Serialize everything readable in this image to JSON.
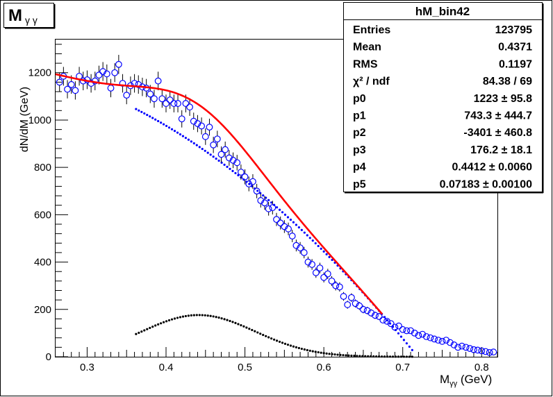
{
  "title_box": {
    "main": "M",
    "sub": "γ γ"
  },
  "stats": {
    "name": "hM_bin42",
    "rows": [
      {
        "label": "Entries",
        "value": "123795"
      },
      {
        "label": "Mean",
        "value": "0.4371"
      },
      {
        "label": "RMS",
        "value": "0.1197"
      },
      {
        "label": "χ² / ndf",
        "value": "84.38 / 69"
      },
      {
        "label": "p0",
        "value": "1223 ± 95.8"
      },
      {
        "label": "p1",
        "value": "743.3 ± 444.7"
      },
      {
        "label": "p2",
        "value": "-3401 ± 460.8"
      },
      {
        "label": "p3",
        "value": "176.2 ± 18.1"
      },
      {
        "label": "p4",
        "value": "0.4412 ± 0.0060"
      },
      {
        "label": "p5",
        "value": "0.07183 ± 0.00100"
      }
    ]
  },
  "chart_data": {
    "type": "scatter",
    "xlabel": "Mγγ (GeV)",
    "ylabel": "dN/dM (GeV)",
    "xlim": [
      0.26,
      0.82
    ],
    "ylim": [
      0,
      1340
    ],
    "xticks": [
      "0.3",
      "0.4",
      "0.5",
      "0.6",
      "0.7",
      "0.8"
    ],
    "yticks": [
      "0",
      "200",
      "400",
      "600",
      "800",
      "1000",
      "1200"
    ],
    "fit_params": {
      "p0": 1223,
      "p1": 743.3,
      "p2": -3401,
      "p3": 176.2,
      "p4": 0.4412,
      "p5": 0.07183
    },
    "fit_range": [
      0.26,
      0.675
    ],
    "component_range": [
      0.362,
      0.715
    ],
    "series": [
      {
        "name": "hM_bin42",
        "kind": "points",
        "color": "#0000ff",
        "x": [
          0.265,
          0.27,
          0.275,
          0.28,
          0.285,
          0.29,
          0.295,
          0.3,
          0.305,
          0.31,
          0.315,
          0.32,
          0.325,
          0.33,
          0.335,
          0.34,
          0.345,
          0.35,
          0.355,
          0.36,
          0.365,
          0.37,
          0.375,
          0.38,
          0.385,
          0.39,
          0.395,
          0.4,
          0.405,
          0.41,
          0.415,
          0.42,
          0.425,
          0.43,
          0.435,
          0.44,
          0.445,
          0.45,
          0.455,
          0.46,
          0.465,
          0.47,
          0.475,
          0.48,
          0.485,
          0.49,
          0.495,
          0.5,
          0.505,
          0.51,
          0.515,
          0.52,
          0.525,
          0.53,
          0.535,
          0.54,
          0.545,
          0.55,
          0.555,
          0.56,
          0.565,
          0.57,
          0.575,
          0.58,
          0.585,
          0.59,
          0.595,
          0.6,
          0.605,
          0.61,
          0.615,
          0.62,
          0.625,
          0.63,
          0.635,
          0.64,
          0.645,
          0.65,
          0.655,
          0.66,
          0.665,
          0.67,
          0.675,
          0.68,
          0.685,
          0.69,
          0.695,
          0.7,
          0.705,
          0.71,
          0.715,
          0.72,
          0.725,
          0.73,
          0.735,
          0.74,
          0.745,
          0.75,
          0.755,
          0.76,
          0.765,
          0.77,
          0.775,
          0.78,
          0.785,
          0.79,
          0.795,
          0.8,
          0.805,
          0.81,
          0.815
        ],
        "y": [
          1160,
          1185,
          1130,
          1150,
          1125,
          1185,
          1165,
          1170,
          1155,
          1165,
          1190,
          1205,
          1195,
          1135,
          1200,
          1235,
          1155,
          1105,
          1145,
          1155,
          1150,
          1140,
          1135,
          1110,
          1090,
          1165,
          1090,
          1070,
          1085,
          1070,
          1070,
          1005,
          1070,
          1055,
          995,
          985,
          975,
          930,
          970,
          895,
          920,
          855,
          875,
          840,
          830,
          820,
          780,
          760,
          730,
          740,
          700,
          660,
          650,
          625,
          630,
          580,
          565,
          550,
          540,
          510,
          470,
          460,
          440,
          400,
          390,
          355,
          375,
          335,
          350,
          320,
          300,
          295,
          255,
          220,
          250,
          225,
          215,
          200,
          195,
          185,
          175,
          170,
          155,
          150,
          140,
          125,
          130,
          115,
          110,
          110,
          100,
          90,
          95,
          85,
          80,
          75,
          70,
          65,
          70,
          60,
          50,
          40,
          45,
          40,
          35,
          30,
          28,
          25,
          22,
          18,
          20
        ],
        "err_per_sqrt": 1.0
      },
      {
        "name": "background",
        "kind": "dotted-line",
        "color": "#0000ff"
      },
      {
        "name": "peak",
        "kind": "dotted-line",
        "color": "#000000"
      },
      {
        "name": "fit",
        "kind": "line",
        "color": "#ff0000"
      }
    ]
  }
}
